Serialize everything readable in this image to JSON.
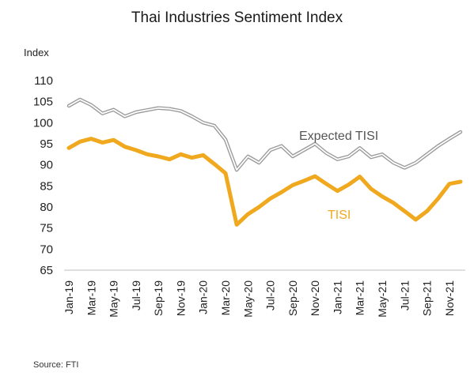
{
  "chart_data": {
    "type": "line",
    "title": "Thai Industries Sentiment Index",
    "ylabel": "Index",
    "xlabel": "",
    "ylim": [
      65,
      110
    ],
    "y_ticks": [
      110,
      105,
      100,
      95,
      90,
      85,
      80,
      75,
      70,
      65
    ],
    "x_tick_labels": [
      "Jan-19",
      "Mar-19",
      "May-19",
      "Jul-19",
      "Sep-19",
      "Nov-19",
      "Jan-20",
      "Mar-20",
      "May-20",
      "Jul-20",
      "Sep-20",
      "Nov-20",
      "Jan-21",
      "Mar-21",
      "May-21",
      "Jul-21",
      "Sep-21",
      "Nov-21"
    ],
    "months": [
      "Jan-19",
      "Feb-19",
      "Mar-19",
      "Apr-19",
      "May-19",
      "Jun-19",
      "Jul-19",
      "Aug-19",
      "Sep-19",
      "Oct-19",
      "Nov-19",
      "Dec-19",
      "Jan-20",
      "Feb-20",
      "Mar-20",
      "Apr-20",
      "May-20",
      "Jun-20",
      "Jul-20",
      "Aug-20",
      "Sep-20",
      "Oct-20",
      "Nov-20",
      "Dec-20",
      "Jan-21",
      "Feb-21",
      "Mar-21",
      "Apr-21",
      "May-21",
      "Jun-21",
      "Jul-21",
      "Aug-21",
      "Sep-21",
      "Oct-21",
      "Nov-21",
      "Dec-21"
    ],
    "grid": false,
    "series": [
      {
        "name": "Expected TISI",
        "color": "#9a9a9a",
        "values": [
          104.0,
          105.5,
          104.2,
          102.2,
          103.1,
          101.5,
          102.5,
          103.0,
          103.5,
          103.3,
          102.8,
          101.5,
          100.0,
          99.3,
          96.0,
          88.8,
          92.0,
          90.5,
          93.5,
          94.5,
          92.0,
          93.5,
          95.0,
          92.8,
          91.3,
          92.0,
          94.0,
          91.8,
          92.5,
          90.5,
          89.3,
          90.5,
          92.5,
          94.5,
          96.2,
          97.8
        ]
      },
      {
        "name": "TISI",
        "color": "#f0a81e",
        "values": [
          94.0,
          95.5,
          96.2,
          95.3,
          95.9,
          94.3,
          93.5,
          92.5,
          92.0,
          91.3,
          92.5,
          91.7,
          92.3,
          90.2,
          88.0,
          75.8,
          78.3,
          80.0,
          82.0,
          83.5,
          85.2,
          86.2,
          87.3,
          85.5,
          83.8,
          85.3,
          87.2,
          84.3,
          82.5,
          81.0,
          79.0,
          77.0,
          79.0,
          82.0,
          85.5,
          86.0
        ]
      }
    ]
  },
  "source_text": "Source:  FTI"
}
